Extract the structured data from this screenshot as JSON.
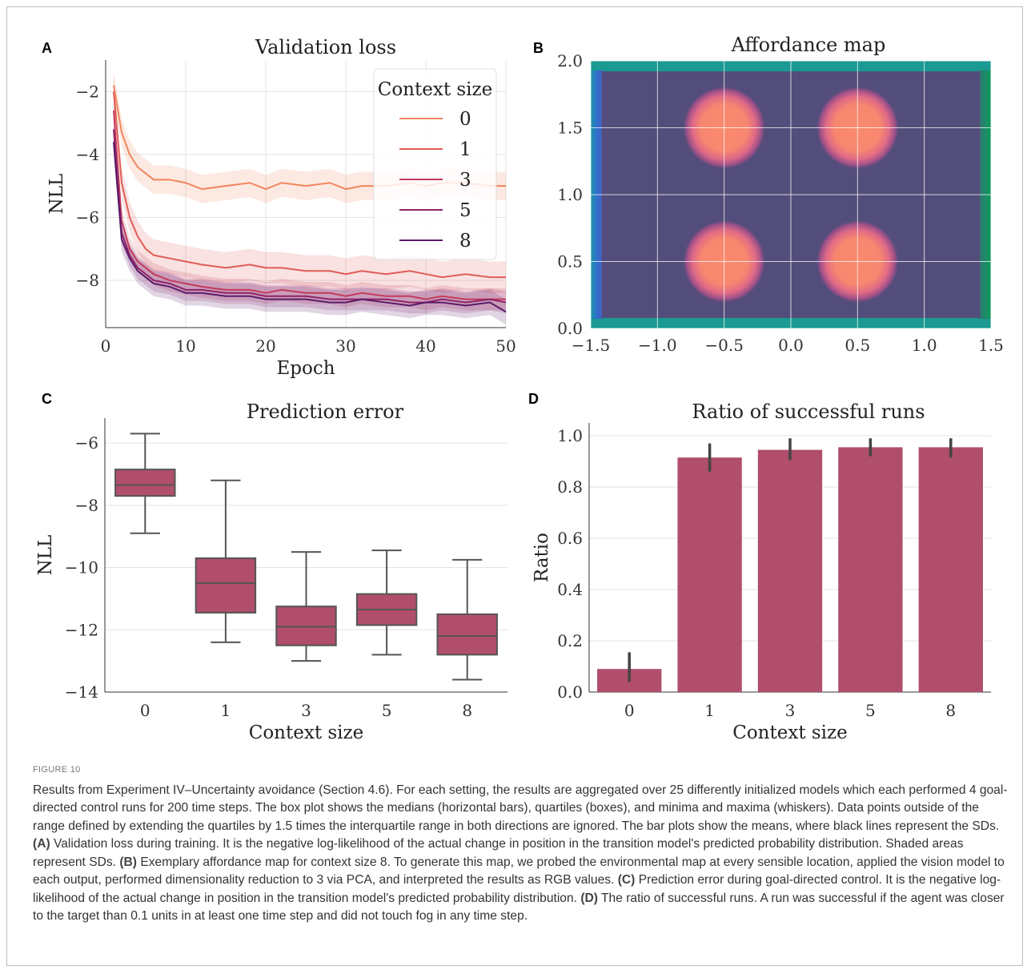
{
  "figure_label": "FIGURE 10",
  "caption_parts": [
    {
      "t": "Results from Experiment IV–Uncertainty avoidance (Section 4.6). For each setting, the results are aggregated over 25 differently initialized models which each performed 4 goal-directed control runs for 200 time steps. The box plot shows the medians (horizontal bars), quartiles (boxes), and minima and maxima (whiskers). Data points outside of the range defined by extending the quartiles by 1.5 times the interquartile range in both directions are ignored. The bar plots show the means, where black lines represent the SDs. ",
      "b": false
    },
    {
      "t": "(A)",
      "b": true
    },
    {
      "t": " Validation loss during training. It is the negative log-likelihood of the actual change in position in the transition model's predicted probability distribution. Shaded areas represent SDs. ",
      "b": false
    },
    {
      "t": "(B)",
      "b": true
    },
    {
      "t": " Exemplary affordance map for context size 8. To generate this map, we probed the environmental map at every sensible location, applied the vision model to each output, performed dimensionality reduction to 3 via PCA, and interpreted the results as RGB values. ",
      "b": false
    },
    {
      "t": "(C)",
      "b": true
    },
    {
      "t": " Prediction error during goal-directed control. It is the negative log-likelihood of the actual change in position in the transition model's predicted probability distribution. ",
      "b": false
    },
    {
      "t": "(D)",
      "b": true
    },
    {
      "t": " The ratio of successful runs. A run was successful if the agent was closer to the target than 0.1 units in at least one time step and did not touch fog in any time step.",
      "b": false
    }
  ],
  "colors": {
    "series": [
      "#f0865e",
      "#e05c56",
      "#c23b5c",
      "#8e2367",
      "#5a1a6a"
    ],
    "bar": "#b04e6b",
    "box": "#b04e6b",
    "map_bg": "#524d7a",
    "map_blob": "#f78a70"
  },
  "chart_data": [
    {
      "panel": "A",
      "type": "line",
      "title": "Validation loss",
      "xlabel": "Epoch",
      "ylabel": "NLL",
      "xlim": [
        0,
        50
      ],
      "ylim": [
        -9.5,
        -1.0
      ],
      "xticks": [
        0,
        10,
        20,
        30,
        40,
        50
      ],
      "yticks": [
        -2,
        -4,
        -6,
        -8
      ],
      "grid": true,
      "legend": {
        "title": "Context size",
        "placement": "top-right"
      },
      "x": [
        1,
        2,
        3,
        4,
        5,
        6,
        8,
        10,
        12,
        15,
        18,
        20,
        22,
        25,
        28,
        30,
        32,
        35,
        38,
        40,
        42,
        45,
        48,
        50
      ],
      "series": [
        {
          "name": "0",
          "values": [
            -1.8,
            -3.3,
            -4.0,
            -4.4,
            -4.6,
            -4.8,
            -4.8,
            -4.9,
            -5.1,
            -5.0,
            -4.9,
            -5.1,
            -4.9,
            -5.0,
            -4.9,
            -5.1,
            -5.0,
            -5.0,
            -4.9,
            -5.0,
            -4.9,
            -4.9,
            -5.0,
            -5.0
          ],
          "sd": 0.45
        },
        {
          "name": "1",
          "values": [
            -2.0,
            -4.9,
            -6.0,
            -6.6,
            -7.0,
            -7.2,
            -7.3,
            -7.4,
            -7.5,
            -7.6,
            -7.5,
            -7.6,
            -7.6,
            -7.7,
            -7.7,
            -7.8,
            -7.7,
            -7.8,
            -7.7,
            -7.8,
            -7.9,
            -7.8,
            -7.9,
            -7.9
          ],
          "sd": 0.5
        },
        {
          "name": "3",
          "values": [
            -2.6,
            -6.1,
            -7.0,
            -7.4,
            -7.6,
            -7.8,
            -8.0,
            -8.1,
            -8.2,
            -8.3,
            -8.3,
            -8.4,
            -8.3,
            -8.4,
            -8.4,
            -8.5,
            -8.4,
            -8.5,
            -8.5,
            -8.6,
            -8.5,
            -8.6,
            -8.6,
            -8.6
          ],
          "sd": 0.35
        },
        {
          "name": "5",
          "values": [
            -3.2,
            -6.5,
            -7.2,
            -7.6,
            -7.8,
            -8.0,
            -8.1,
            -8.3,
            -8.3,
            -8.4,
            -8.4,
            -8.5,
            -8.5,
            -8.5,
            -8.6,
            -8.6,
            -8.6,
            -8.6,
            -8.7,
            -8.7,
            -8.6,
            -8.7,
            -8.6,
            -8.7
          ],
          "sd": 0.35
        },
        {
          "name": "8",
          "values": [
            -3.6,
            -6.7,
            -7.3,
            -7.7,
            -7.9,
            -8.1,
            -8.2,
            -8.4,
            -8.4,
            -8.5,
            -8.5,
            -8.6,
            -8.6,
            -8.6,
            -8.7,
            -8.7,
            -8.6,
            -8.7,
            -8.8,
            -8.7,
            -8.7,
            -8.8,
            -8.7,
            -9.0
          ],
          "sd": 0.4
        }
      ]
    },
    {
      "panel": "B",
      "type": "heatmap",
      "title": "Affordance map",
      "xlim": [
        -1.5,
        1.5
      ],
      "ylim": [
        0.0,
        2.0
      ],
      "xticks": [
        -1.5,
        -1.0,
        -0.5,
        0.0,
        0.5,
        1.0,
        1.5
      ],
      "yticks": [
        0.0,
        0.5,
        1.0,
        1.5,
        2.0
      ],
      "xtick_labels": [
        "−1.5",
        "−1.0",
        "−0.5",
        "0.0",
        "0.5",
        "1.0",
        "1.5"
      ],
      "ytick_labels": [
        "0.0",
        "0.5",
        "1.0",
        "1.5",
        "2.0"
      ],
      "grid": true,
      "blobs": [
        {
          "x": -0.5,
          "y": 1.5,
          "r": 0.3
        },
        {
          "x": 0.5,
          "y": 1.5,
          "r": 0.3
        },
        {
          "x": -0.5,
          "y": 0.5,
          "r": 0.3
        },
        {
          "x": 0.5,
          "y": 0.5,
          "r": 0.3
        }
      ]
    },
    {
      "panel": "C",
      "type": "box",
      "title": "Prediction error",
      "xlabel": "Context size",
      "ylabel": "NLL",
      "ylim": [
        -14,
        -5.2
      ],
      "yticks": [
        -6,
        -8,
        -10,
        -12,
        -14
      ],
      "categories": [
        "0",
        "1",
        "3",
        "5",
        "8"
      ],
      "boxes": [
        {
          "min": -8.9,
          "q1": -7.7,
          "median": -7.35,
          "q3": -6.85,
          "max": -5.7
        },
        {
          "min": -12.4,
          "q1": -11.45,
          "median": -10.5,
          "q3": -9.7,
          "max": -7.2
        },
        {
          "min": -13.0,
          "q1": -12.5,
          "median": -11.9,
          "q3": -11.25,
          "max": -9.5
        },
        {
          "min": -12.8,
          "q1": -11.85,
          "median": -11.35,
          "q3": -10.85,
          "max": -9.45
        },
        {
          "min": -13.6,
          "q1": -12.8,
          "median": -12.2,
          "q3": -11.5,
          "max": -9.75
        }
      ],
      "grid": true
    },
    {
      "panel": "D",
      "type": "bar",
      "title": "Ratio of successful runs",
      "xlabel": "Context size",
      "ylabel": "Ratio",
      "ylim": [
        0.0,
        1.05
      ],
      "yticks": [
        0.0,
        0.2,
        0.4,
        0.6,
        0.8,
        1.0
      ],
      "categories": [
        "0",
        "1",
        "3",
        "5",
        "8"
      ],
      "values": [
        0.09,
        0.915,
        0.945,
        0.955,
        0.955
      ],
      "sd_low": [
        0.04,
        0.86,
        0.905,
        0.92,
        0.915
      ],
      "sd_high": [
        0.155,
        0.97,
        0.99,
        0.99,
        0.99
      ],
      "grid": true
    }
  ]
}
